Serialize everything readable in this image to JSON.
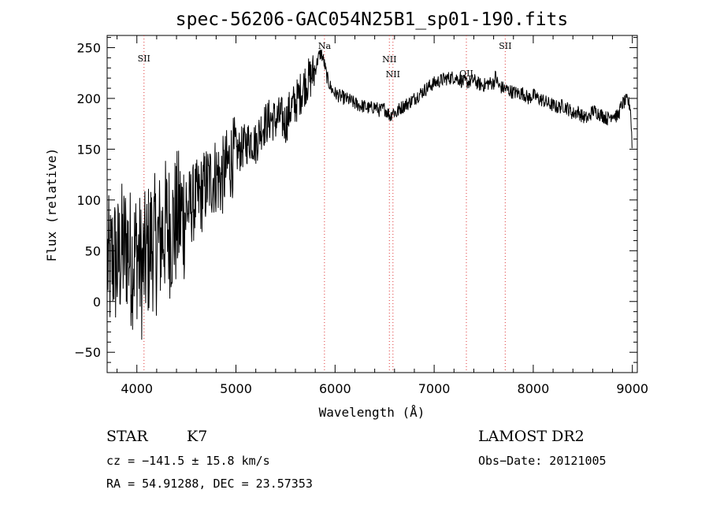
{
  "chart_data": {
    "type": "line",
    "title": "spec-56206-GAC054N25B1_sp01-190.fits",
    "xlabel": "Wavelength (Å)",
    "ylabel": "Flux (relative)",
    "xlim": [
      3700,
      9050
    ],
    "ylim": [
      -70,
      262
    ],
    "x_ticks": [
      4000,
      5000,
      6000,
      7000,
      8000,
      9000
    ],
    "y_ticks": [
      -50,
      0,
      50,
      100,
      150,
      200,
      250
    ],
    "x_tick_labels": [
      "4000",
      "5000",
      "6000",
      "7000",
      "8000",
      "9000"
    ],
    "y_tick_labels": [
      "−50",
      "0",
      "50",
      "100",
      "150",
      "200",
      "250"
    ],
    "grid": false,
    "series": [
      {
        "color": "#000000",
        "x": [
          3705,
          3730,
          3760,
          3800,
          3850,
          3900,
          3950,
          4000,
          4050,
          4100,
          4150,
          4200,
          4250,
          4300,
          4350,
          4400,
          4450,
          4500,
          4550,
          4600,
          4650,
          4700,
          4750,
          4800,
          4850,
          4900,
          4950,
          5000,
          5050,
          5100,
          5150,
          5200,
          5250,
          5300,
          5350,
          5400,
          5450,
          5500,
          5550,
          5600,
          5650,
          5700,
          5750,
          5800,
          5830,
          5860,
          5890,
          5920,
          5960,
          6000,
          6050,
          6100,
          6150,
          6200,
          6250,
          6300,
          6350,
          6400,
          6450,
          6500,
          6540,
          6560,
          6580,
          6620,
          6650,
          6700,
          6750,
          6800,
          6850,
          6900,
          6950,
          7000,
          7050,
          7100,
          7150,
          7200,
          7250,
          7300,
          7350,
          7400,
          7450,
          7500,
          7550,
          7600,
          7620,
          7650,
          7700,
          7750,
          7800,
          7850,
          7900,
          7950,
          8000,
          8050,
          8100,
          8150,
          8200,
          8250,
          8300,
          8350,
          8400,
          8450,
          8500,
          8550,
          8600,
          8650,
          8700,
          8750,
          8800,
          8850,
          8900,
          8950,
          8980,
          9000
        ],
        "y": [
          40,
          30,
          45,
          35,
          50,
          55,
          40,
          50,
          30,
          45,
          60,
          55,
          65,
          75,
          70,
          80,
          85,
          90,
          95,
          100,
          105,
          115,
          120,
          125,
          120,
          130,
          140,
          145,
          150,
          155,
          160,
          155,
          170,
          175,
          180,
          178,
          182,
          175,
          190,
          195,
          205,
          215,
          220,
          228,
          240,
          245,
          235,
          220,
          210,
          205,
          202,
          200,
          198,
          195,
          193,
          192,
          190,
          192,
          188,
          190,
          185,
          182,
          188,
          185,
          190,
          193,
          196,
          200,
          204,
          208,
          212,
          215,
          217,
          219,
          220,
          221,
          219,
          216,
          216,
          218,
          214,
          213,
          215,
          215,
          222,
          212,
          210,
          208,
          206,
          205,
          205,
          200,
          203,
          200,
          198,
          195,
          193,
          191,
          193,
          190,
          185,
          187,
          182,
          180,
          188,
          186,
          183,
          180,
          185,
          182,
          195,
          198,
          192,
          150
        ]
      }
    ],
    "lines": [
      {
        "label": "SII",
        "wavelength": 4072
      },
      {
        "label": "Na",
        "wavelength": 5893
      },
      {
        "label": "NII",
        "wavelength": 6548
      },
      {
        "label": "NII",
        "wavelength": 6584
      },
      {
        "label": "OII",
        "wavelength": 7325
      },
      {
        "label": "SII",
        "wavelength": 7717
      }
    ]
  },
  "info": {
    "object_class": "STAR",
    "subclass": "K7",
    "survey": "LAMOST DR2",
    "redshift": "cz = −141.5 ± 15.8 km/s",
    "obs_date": "Obs−Date: 20121005",
    "coords": "RA =  54.91288, DEC =  23.57353"
  }
}
